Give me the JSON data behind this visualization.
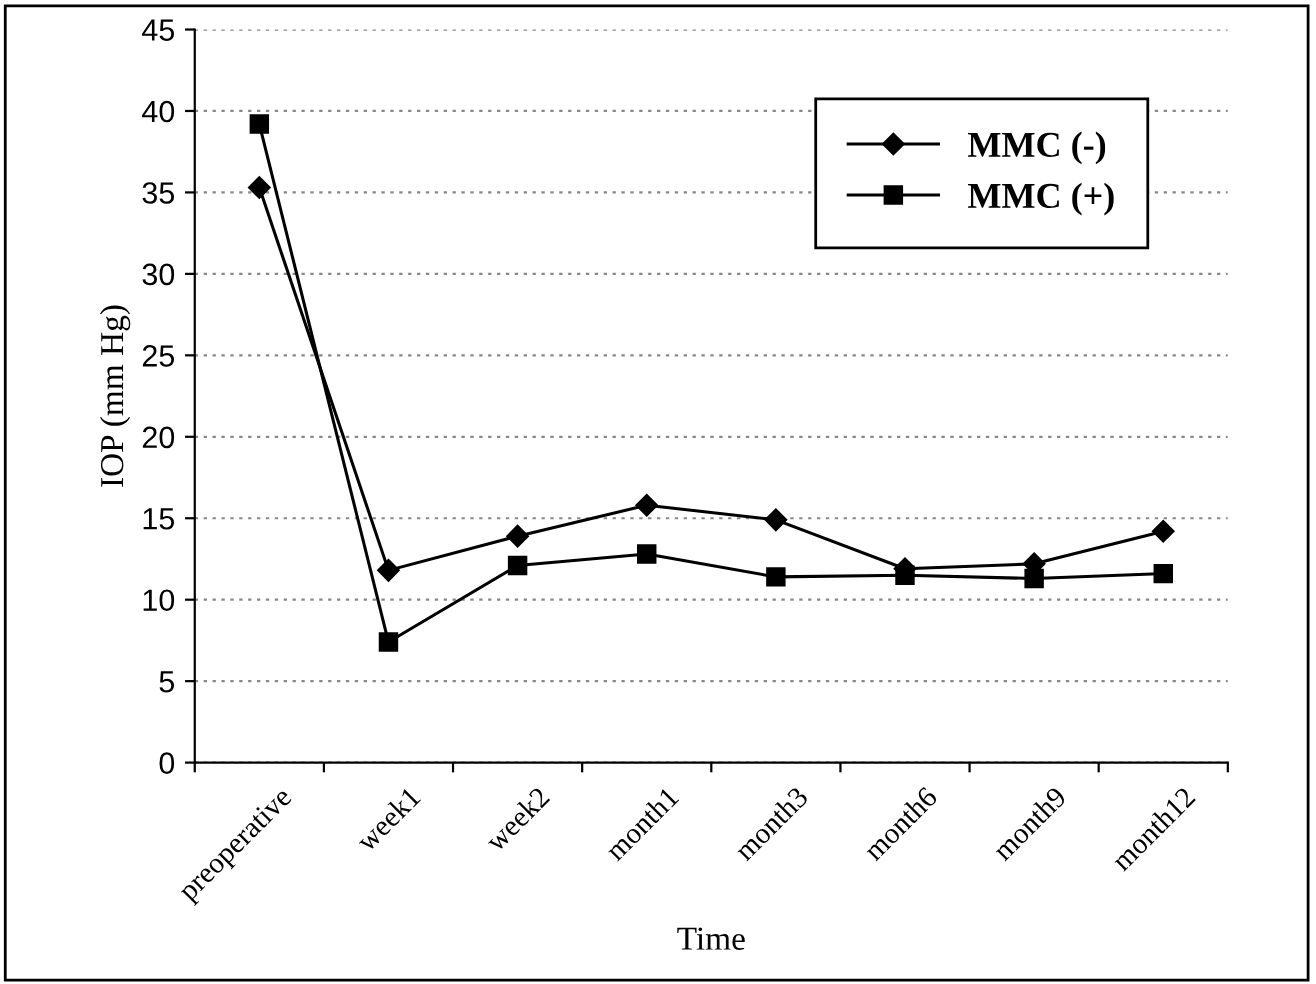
{
  "chart_data": {
    "type": "line",
    "xlabel": "Time",
    "ylabel": "IOP (mm Hg)",
    "categories": [
      "preoperative",
      "week1",
      "week2",
      "month1",
      "month3",
      "month6",
      "month9",
      "month12"
    ],
    "series": [
      {
        "name": "MMC (-)",
        "color": "#000000",
        "marker": "diamond",
        "values": [
          35.3,
          11.8,
          13.9,
          15.8,
          14.9,
          11.9,
          12.2,
          14.2
        ]
      },
      {
        "name": "MMC (+)",
        "color": "#000000",
        "marker": "square",
        "values": [
          39.2,
          7.4,
          12.1,
          12.8,
          11.4,
          11.5,
          11.3,
          11.6
        ]
      }
    ],
    "ylim": [
      0,
      45
    ],
    "yticks": [
      0,
      5,
      10,
      15,
      20,
      25,
      30,
      35,
      40,
      45
    ],
    "grid": "y",
    "legend": "top right",
    "line_style": "solid"
  }
}
